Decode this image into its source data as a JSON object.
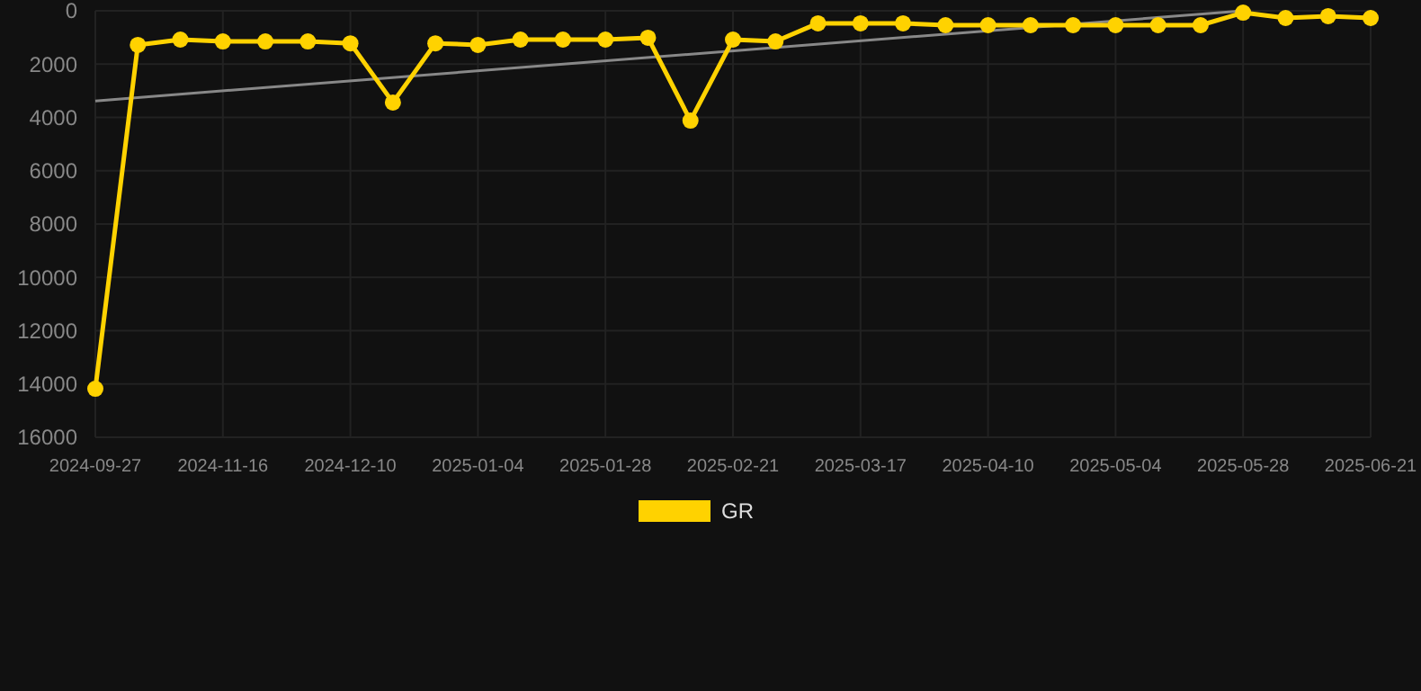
{
  "chart_data": {
    "type": "line",
    "categories": [
      "2024-09-27",
      null,
      null,
      "2024-11-16",
      null,
      null,
      "2024-12-10",
      null,
      null,
      "2025-01-04",
      null,
      null,
      "2025-01-28",
      null,
      null,
      "2025-02-21",
      null,
      null,
      "2025-03-17",
      null,
      null,
      "2025-04-10",
      null,
      null,
      "2025-05-04",
      null,
      null,
      "2025-05-28",
      null,
      null,
      "2025-06-21"
    ],
    "series": [
      {
        "name": "GR",
        "color": "#ffd200",
        "values": [
          14180,
          1280,
          1080,
          1150,
          1150,
          1150,
          1220,
          3440,
          1220,
          1280,
          1080,
          1080,
          1080,
          1010,
          4120,
          1080,
          1150,
          470,
          470,
          470,
          540,
          540,
          540,
          540,
          540,
          540,
          540,
          70,
          270,
          200,
          270
        ]
      },
      {
        "type": "line",
        "color": "#888888",
        "marker": "none",
        "values": [
          3380,
          null,
          null,
          null,
          null,
          null,
          null,
          null,
          null,
          null,
          null,
          null,
          null,
          null,
          null,
          null,
          null,
          null,
          null,
          null,
          null,
          null,
          null,
          null,
          null,
          null,
          null,
          0,
          null,
          null,
          null
        ]
      }
    ],
    "ylim": [
      16000,
      0
    ],
    "yticks": [
      0,
      2000,
      4000,
      6000,
      8000,
      10000,
      12000,
      14000,
      16000
    ],
    "grid": true,
    "legend": "bottom",
    "marker": "circle",
    "line_style": "solid"
  }
}
